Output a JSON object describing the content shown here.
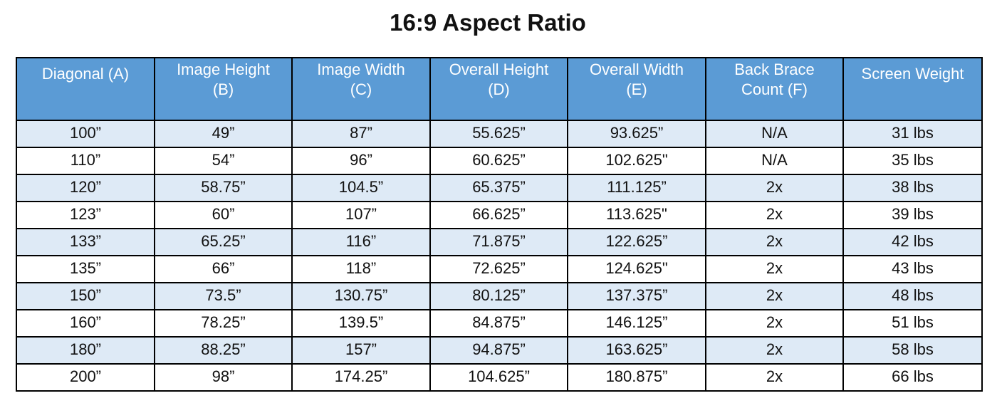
{
  "title": "16:9 Aspect Ratio",
  "colors": {
    "header_bg": "#5b9bd5",
    "header_text": "#ffffff",
    "row_shade": "#deeaf6",
    "row_plain": "#ffffff",
    "border": "#000000"
  },
  "table": {
    "headers": [
      {
        "line1": "Diagonal (A)",
        "line2": ""
      },
      {
        "line1": "Image Height",
        "line2": "(B)"
      },
      {
        "line1": "Image Width",
        "line2": "(C)"
      },
      {
        "line1": "Overall Height",
        "line2": "(D)"
      },
      {
        "line1": "Overall Width",
        "line2": "(E)"
      },
      {
        "line1": "Back Brace",
        "line2": "Count (F)"
      },
      {
        "line1": "Screen Weight",
        "line2": ""
      }
    ],
    "rows": [
      [
        "100”",
        "49”",
        "87”",
        "55.625”",
        "93.625”",
        "N/A",
        "31 lbs"
      ],
      [
        "110”",
        "54”",
        "96”",
        "60.625”",
        "102.625\"",
        "N/A",
        "35 lbs"
      ],
      [
        "120”",
        "58.75”",
        "104.5”",
        "65.375”",
        "111.125”",
        "2x",
        "38 lbs"
      ],
      [
        "123”",
        "60”",
        "107”",
        "66.625”",
        "113.625\"",
        "2x",
        "39 lbs"
      ],
      [
        "133”",
        "65.25”",
        "116”",
        "71.875”",
        "122.625”",
        "2x",
        "42 lbs"
      ],
      [
        "135”",
        "66”",
        "118”",
        "72.625”",
        "124.625\"",
        "2x",
        "43 lbs"
      ],
      [
        "150”",
        "73.5”",
        "130.75”",
        "80.125”",
        "137.375”",
        "2x",
        "48 lbs"
      ],
      [
        "160”",
        "78.25”",
        "139.5”",
        "84.875”",
        "146.125”",
        "2x",
        "51 lbs"
      ],
      [
        "180”",
        "88.25”",
        "157”",
        "94.875”",
        "163.625”",
        "2x",
        "58 lbs"
      ],
      [
        "200”",
        "98”",
        "174.25”",
        "104.625”",
        "180.875”",
        "2x",
        "66 lbs"
      ]
    ]
  }
}
